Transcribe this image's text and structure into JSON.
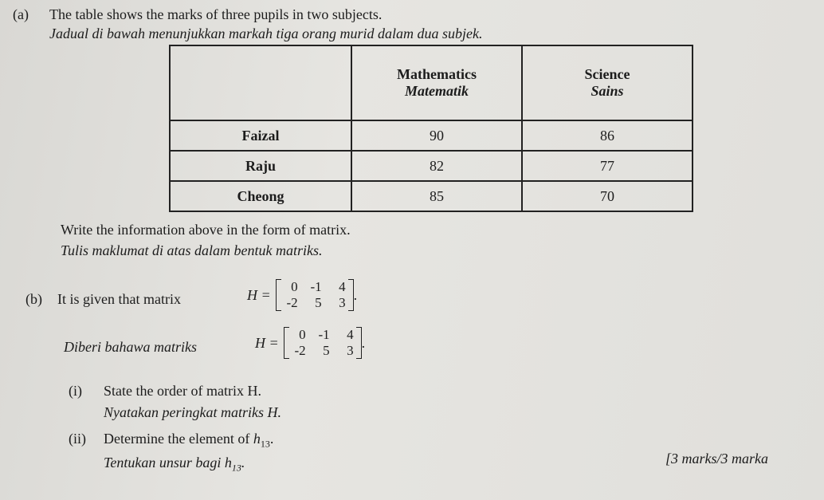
{
  "part_a": {
    "label": "(a)",
    "text": "The table shows the marks of three pupils in two subjects.",
    "text_ms": "Jadual di bawah menunjukkan markah tiga orang murid dalam dua subjek.",
    "table": {
      "columns": [
        {
          "en": "Mathematics",
          "ms": "Matematik"
        },
        {
          "en": "Science",
          "ms": "Sains"
        }
      ],
      "rows": [
        [
          "Faizal",
          90,
          86
        ],
        [
          "Raju",
          82,
          77
        ],
        [
          "Cheong",
          85,
          70
        ]
      ]
    },
    "instruction": "Write the information above in the form of matrix.",
    "instruction_ms": "Tulis maklumat di atas dalam bentuk matriks."
  },
  "part_b": {
    "label": "(b)",
    "text": "It is given that matrix",
    "text_ms": "Diberi bahawa matriks",
    "matrix_name": "H =",
    "matrix": [
      [
        0,
        -1,
        4
      ],
      [
        -2,
        5,
        3
      ]
    ],
    "suffix": ".",
    "questions": [
      {
        "label": "(i)",
        "text": "State the order of matrix H.",
        "text_ms": "Nyatakan peringkat matriks H."
      },
      {
        "label": "(ii)",
        "text": "Determine the element of",
        "text_ms": "Tentukan unsur bagi",
        "symbol": "h",
        "subscript": "13",
        "suffix": "."
      }
    ],
    "marks": "[3 marks/3 marka"
  }
}
